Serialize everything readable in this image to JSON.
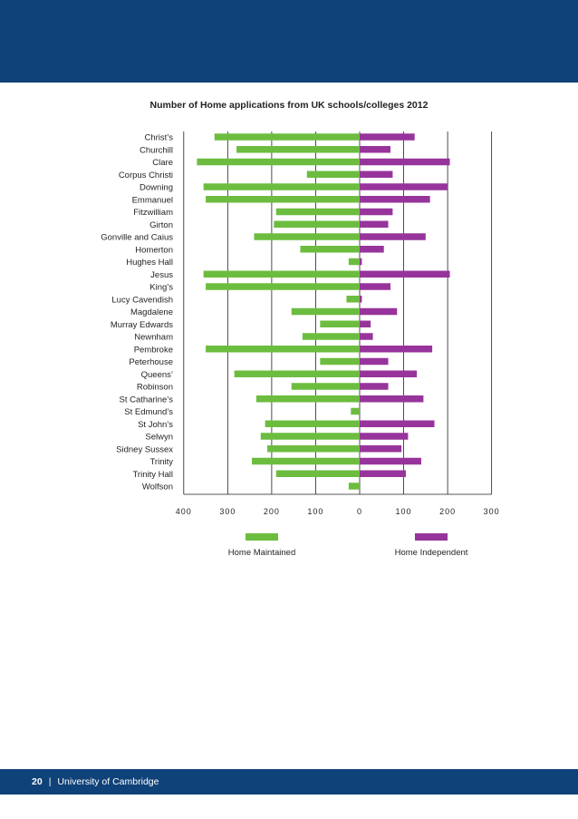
{
  "footer": {
    "page_number": "20",
    "separator": "|",
    "publisher": "University of Cambridge"
  },
  "colors": {
    "banner": "#0f4279",
    "maintained": "#6cbd3f",
    "independent": "#97349b",
    "gridline": "#231f20"
  },
  "chart_data": {
    "type": "bar",
    "orientation": "horizontal-diverging",
    "title": "Number of Home applications from UK schools/colleges 2012",
    "categories": [
      "Christ’s",
      "Churchill",
      "Clare",
      "Corpus Christi",
      "Downing",
      "Emmanuel",
      "Fitzwilliam",
      "Girton",
      "Gonville and Caius",
      "Homerton",
      "Hughes Hall",
      "Jesus",
      "King’s",
      "Lucy Cavendish",
      "Magdalene",
      "Murray Edwards",
      "Newnham",
      "Pembroke",
      "Peterhouse",
      "Queens’",
      "Robinson",
      "St Catharine’s",
      "St Edmund’s",
      "St John’s",
      "Selwyn",
      "Sidney Sussex",
      "Trinity",
      "Trinity Hall",
      "Wolfson"
    ],
    "series": [
      {
        "name": "Home Maintained",
        "direction": "left",
        "values": [
          330,
          280,
          370,
          120,
          355,
          350,
          190,
          195,
          240,
          135,
          25,
          355,
          350,
          30,
          155,
          90,
          130,
          350,
          90,
          285,
          155,
          235,
          20,
          215,
          225,
          210,
          245,
          190,
          25
        ]
      },
      {
        "name": "Home Independent",
        "direction": "right",
        "values": [
          125,
          70,
          205,
          75,
          200,
          160,
          75,
          65,
          150,
          55,
          5,
          205,
          70,
          5,
          85,
          25,
          30,
          165,
          65,
          130,
          65,
          145,
          0,
          170,
          110,
          95,
          140,
          105,
          0
        ]
      }
    ],
    "x_ticks": [
      "400",
      "300",
      "200",
      "100",
      "0",
      "100",
      "200",
      "300"
    ],
    "xlim": [
      -400,
      300
    ],
    "grid": true,
    "legend_placement": "bottom"
  }
}
